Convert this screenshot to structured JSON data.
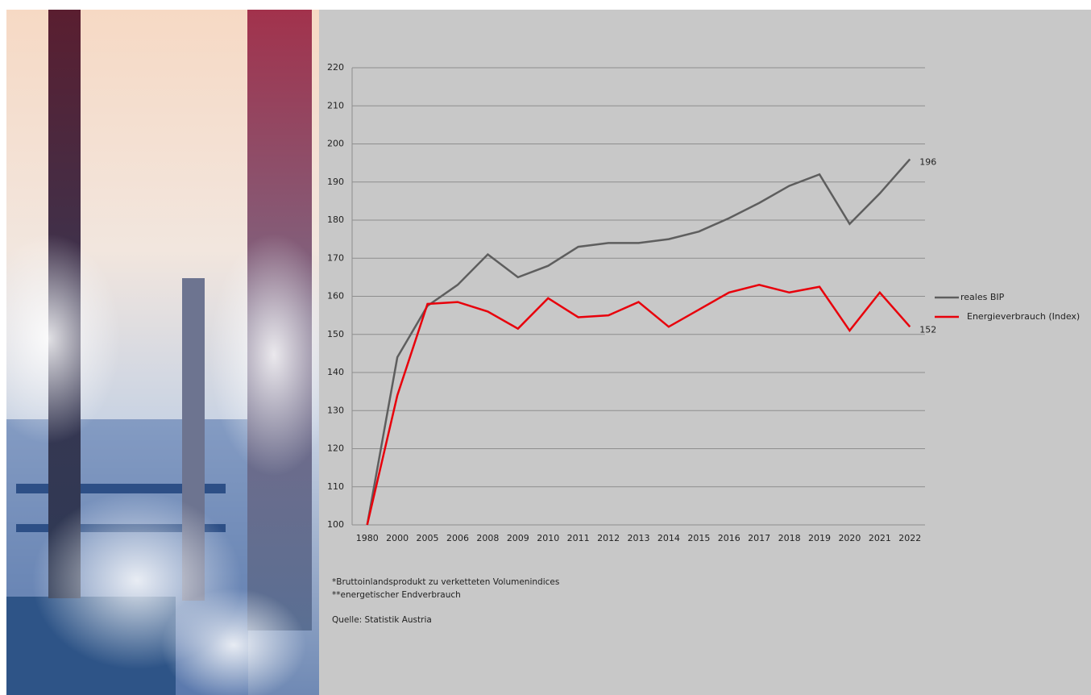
{
  "chart_data": {
    "type": "line",
    "categories": [
      "1980",
      "2000",
      "2005",
      "2006",
      "2008",
      "2009",
      "2010",
      "2011",
      "2012",
      "2013",
      "2014",
      "2015",
      "2016",
      "2017",
      "2018",
      "2019",
      "2020",
      "2021",
      "2022"
    ],
    "series": [
      {
        "name": "reales BIP",
        "color": "#5e5e5e",
        "values": [
          100,
          144,
          157.5,
          163,
          171,
          165,
          168,
          173,
          174,
          174,
          175,
          177,
          180.5,
          184.5,
          189,
          192,
          179,
          187,
          196
        ]
      },
      {
        "name": "Energieverbrauch (Index)",
        "color": "#e8000b",
        "values": [
          100,
          134,
          158,
          158.5,
          156,
          151.5,
          159.5,
          154.5,
          155,
          158.5,
          152,
          156.5,
          161,
          163,
          161,
          162.5,
          151,
          161,
          152
        ]
      }
    ],
    "ylim": [
      100,
      220
    ],
    "yticks": [
      100,
      110,
      120,
      130,
      140,
      150,
      160,
      170,
      180,
      190,
      200,
      210,
      220
    ],
    "grid": true,
    "footnotes": [
      "*Bruttoinlandsprodukt zu verketteten Volumenindices",
      "**energetischer Endverbrauch"
    ],
    "source": "Quelle: Statistik Austria"
  }
}
